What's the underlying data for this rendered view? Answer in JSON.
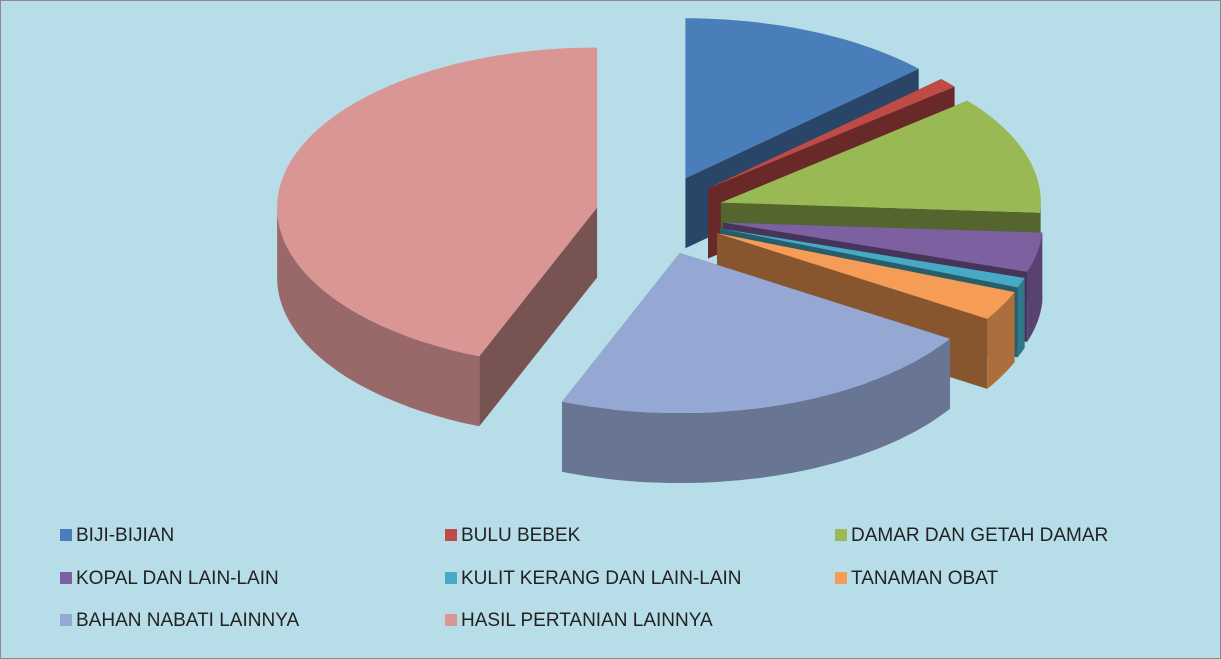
{
  "chart_data": {
    "type": "pie",
    "categories": [
      "BIJI-BIJIAN",
      "BULU BEBEK",
      "DAMAR DAN GETAH DAMAR",
      "KOPAL DAN LAIN-LAIN",
      "KULIT KERANG DAN LAIN-LAIN",
      "TANAMAN OBAT",
      "BAHAN NABATI LAINNYA",
      "HASIL PERTANIAN LAINNYA"
    ],
    "values": [
      13,
      1,
      12,
      4,
      1,
      3,
      22,
      44
    ],
    "colors": [
      "#4a7ebb",
      "#be4b48",
      "#98b954",
      "#7d60a0",
      "#46aac5",
      "#f59d56",
      "#95a8d4",
      "#d99694"
    ],
    "legend": "bottom"
  }
}
